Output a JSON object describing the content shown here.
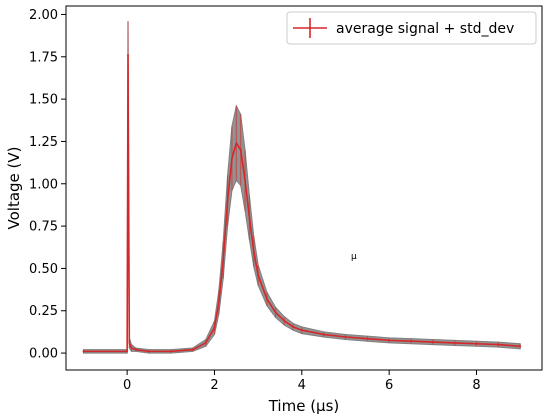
{
  "chart_data": {
    "type": "line",
    "title": "",
    "xlabel": "Time (μs)",
    "ylabel": "Voltage (V)",
    "xlim": [
      -1.4,
      9.5
    ],
    "ylim": [
      -0.1,
      2.05
    ],
    "x_ticks": [
      0,
      2,
      4,
      6,
      8
    ],
    "x_tick_labels": [
      "0",
      "2",
      "4",
      "6",
      "8"
    ],
    "y_ticks": [
      0.0,
      0.25,
      0.5,
      0.75,
      1.0,
      1.25,
      1.5,
      1.75,
      2.0
    ],
    "y_tick_labels": [
      "0.00",
      "0.25",
      "0.50",
      "0.75",
      "1.00",
      "1.25",
      "1.50",
      "1.75",
      "2.00"
    ],
    "grid": false,
    "legend_position": "top-right",
    "annotation": "μ",
    "series": [
      {
        "name": "average signal + std_dev",
        "color": "#d62728",
        "band_color": "#808080",
        "x": [
          -1.0,
          0.0,
          0.02,
          0.05,
          0.1,
          0.2,
          0.5,
          1.0,
          1.5,
          1.8,
          2.0,
          2.1,
          2.2,
          2.3,
          2.4,
          2.5,
          2.6,
          2.7,
          2.8,
          2.9,
          3.0,
          3.2,
          3.4,
          3.6,
          3.8,
          4.0,
          4.5,
          5.0,
          5.5,
          6.0,
          6.5,
          7.0,
          7.5,
          8.0,
          8.5,
          9.0
        ],
        "mean": [
          0.01,
          0.01,
          1.76,
          0.06,
          0.03,
          0.02,
          0.01,
          0.01,
          0.02,
          0.06,
          0.15,
          0.3,
          0.55,
          0.9,
          1.15,
          1.24,
          1.2,
          1.02,
          0.8,
          0.6,
          0.46,
          0.32,
          0.24,
          0.19,
          0.155,
          0.135,
          0.11,
          0.095,
          0.085,
          0.075,
          0.07,
          0.065,
          0.06,
          0.055,
          0.05,
          0.04
        ],
        "std_dev": [
          0.01,
          0.01,
          0.2,
          0.03,
          0.02,
          0.01,
          0.01,
          0.01,
          0.01,
          0.02,
          0.04,
          0.07,
          0.11,
          0.15,
          0.19,
          0.22,
          0.21,
          0.18,
          0.13,
          0.09,
          0.06,
          0.04,
          0.03,
          0.025,
          0.02,
          0.02,
          0.015,
          0.015,
          0.015,
          0.015,
          0.015,
          0.015,
          0.015,
          0.015,
          0.015,
          0.015
        ]
      }
    ]
  }
}
